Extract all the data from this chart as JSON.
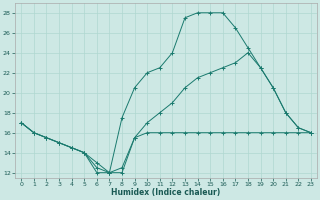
{
  "xlabel": "Humidex (Indice chaleur)",
  "background_color": "#cde8e4",
  "grid_color": "#b0d8d0",
  "line_color": "#1a7a6e",
  "xlim": [
    -0.5,
    23.5
  ],
  "ylim": [
    11.5,
    29
  ],
  "xticks": [
    0,
    1,
    2,
    3,
    4,
    5,
    6,
    7,
    8,
    9,
    10,
    11,
    12,
    13,
    14,
    15,
    16,
    17,
    18,
    19,
    20,
    21,
    22,
    23
  ],
  "yticks": [
    12,
    14,
    16,
    18,
    20,
    22,
    24,
    26,
    28
  ],
  "series": [
    {
      "x": [
        0,
        1,
        2,
        3,
        4,
        5,
        6,
        7,
        8,
        9,
        10,
        11,
        12,
        13,
        14,
        15,
        16,
        17,
        18,
        19,
        20,
        21,
        22,
        23
      ],
      "y": [
        17,
        16,
        15.5,
        15,
        14.5,
        14,
        12,
        12,
        12,
        15.5,
        16,
        16,
        16,
        16,
        16,
        16,
        16,
        16,
        16,
        16,
        16,
        16,
        16,
        16
      ]
    },
    {
      "x": [
        0,
        1,
        2,
        3,
        4,
        5,
        6,
        7,
        8,
        9,
        10,
        11,
        12,
        13,
        14,
        15,
        16,
        17,
        18,
        19,
        20,
        21,
        22,
        23
      ],
      "y": [
        17,
        16,
        15.5,
        15,
        14.5,
        14,
        12.5,
        12,
        17.5,
        20.5,
        22,
        22.5,
        24,
        27.5,
        28,
        28,
        28,
        26.5,
        24.5,
        22.5,
        20.5,
        18,
        16.5,
        16
      ]
    },
    {
      "x": [
        0,
        1,
        2,
        3,
        4,
        5,
        6,
        7,
        8,
        9,
        10,
        11,
        12,
        13,
        14,
        15,
        16,
        17,
        18,
        19,
        20,
        21,
        22,
        23
      ],
      "y": [
        17,
        16,
        15.5,
        15,
        14.5,
        14,
        13,
        12,
        12.5,
        15.5,
        17,
        18,
        19,
        20.5,
        21.5,
        22,
        22.5,
        23,
        24,
        22.5,
        20.5,
        18,
        16.5,
        16
      ]
    }
  ]
}
